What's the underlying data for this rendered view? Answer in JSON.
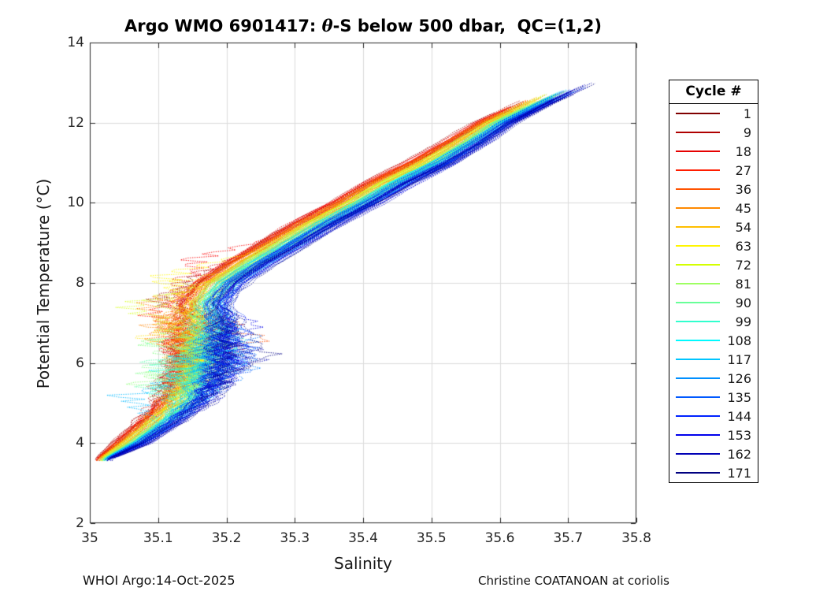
{
  "title": {
    "prefix": "Argo WMO 6901417: ",
    "theta": "θ",
    "suffix": "-S below 500 dbar,  QC=(1,2)",
    "full": "Argo WMO 6901417: θ-S below 500 dbar,  QC=(1,2)"
  },
  "footer": {
    "left": "WHOI Argo:14-Oct-2025",
    "right": "Christine COATANOAN at coriolis"
  },
  "chart_data": {
    "type": "line",
    "title": "Argo WMO 6901417: θ-S below 500 dbar,  QC=(1,2)",
    "xlabel": "Salinity",
    "ylabel": "Potential Temperature (°C)",
    "xlim": [
      35.0,
      35.8
    ],
    "ylim": [
      2,
      14
    ],
    "xticks": [
      35.0,
      35.1,
      35.2,
      35.3,
      35.4,
      35.5,
      35.6,
      35.7,
      35.8
    ],
    "xtick_labels": [
      "35",
      "35.1",
      "35.2",
      "35.3",
      "35.4",
      "35.5",
      "35.6",
      "35.7",
      "35.8"
    ],
    "yticks": [
      2,
      4,
      6,
      8,
      10,
      12,
      14
    ],
    "ytick_labels": [
      "2",
      "4",
      "6",
      "8",
      "10",
      "12",
      "14"
    ],
    "grid": true,
    "legend": {
      "title": "Cycle #",
      "position": "outside-right",
      "cycles": [
        1,
        9,
        18,
        27,
        36,
        45,
        54,
        63,
        72,
        81,
        90,
        99,
        108,
        117,
        126,
        135,
        144,
        153,
        162,
        171
      ],
      "colors": [
        "#800000",
        "#af0000",
        "#e60000",
        "#ff1d00",
        "#ff5300",
        "#ff8900",
        "#ffbf00",
        "#fff500",
        "#d4ff00",
        "#9eff62",
        "#68ff98",
        "#31ffce",
        "#00faff",
        "#00c5ff",
        "#008fff",
        "#0059ff",
        "#0022ff",
        "#0000ec",
        "#0000b6",
        "#000080"
      ]
    },
    "series_meta": {
      "cycle_min": 1,
      "cycle_max": 171,
      "profile_count": 171,
      "colormap": "jet-reversed (cycle 1 = dark red, cycle 171 = dark navy)",
      "line_style": "fine dotted, width 1"
    },
    "backbone": {
      "comment": "mean T-S curve of the profile bundle; salinity vs potential temperature, halfwidth = bundle half-spread in salinity",
      "theta": [
        3.6,
        4.0,
        4.5,
        5.0,
        5.5,
        6.0,
        6.5,
        7.0,
        7.5,
        8.0,
        8.5,
        9.0,
        9.5,
        10.0,
        10.5,
        11.0,
        11.5,
        12.0,
        12.5,
        13.0
      ],
      "salinity": [
        35.02,
        35.06,
        35.1,
        35.135,
        35.155,
        35.17,
        35.165,
        35.17,
        35.165,
        35.19,
        35.235,
        35.285,
        35.335,
        35.39,
        35.44,
        35.5,
        35.55,
        35.595,
        35.655,
        35.72
      ],
      "halfwidth": [
        0.015,
        0.035,
        0.045,
        0.05,
        0.055,
        0.055,
        0.06,
        0.055,
        0.05,
        0.05,
        0.05,
        0.05,
        0.05,
        0.05,
        0.05,
        0.05,
        0.045,
        0.04,
        0.035,
        0.03
      ]
    },
    "features": {
      "start_point": {
        "theta": [
          3.55,
          3.75
        ],
        "salinity": [
          35.005,
          35.04
        ]
      },
      "end_point": {
        "theta": [
          12.1,
          13.0
        ],
        "salinity": [
          35.57,
          35.78
        ]
      },
      "tangle_zone": {
        "theta_range": [
          4.8,
          7.6
        ],
        "salinity_left_extreme": 35.04,
        "salinity_right_extreme": 35.27,
        "note": "eddy-like loops: old red cycles excurse right to 35.27 near 6.5-7.2 C, yellow/green/cyan cycles excurse left to 35.04-35.06 near 5-7.5 C, recent blue cycles cluster at 35.17-35.24"
      },
      "ordering": "at fixed temperature above 8 C, early (red) cycles are fresher, recent (blue) cycles are saltier"
    },
    "colors": {
      "axis": "#262626",
      "grid": "#dcdcdc",
      "title_text": "#000000",
      "tick_text": "#262626"
    }
  }
}
